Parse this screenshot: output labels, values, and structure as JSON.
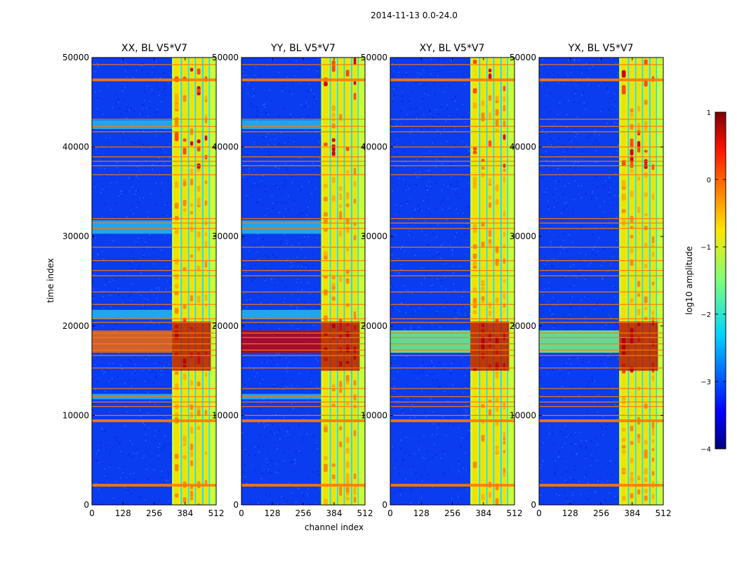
{
  "suptitle": "2014-11-13 0.0-24.0",
  "chart_data": [
    {
      "type": "heatmap",
      "title": "XX, BL V5*V7",
      "xlabel": "",
      "ylabel": "time index",
      "xlim": [
        0,
        512
      ],
      "ylim": [
        0,
        50000
      ],
      "xticks": [
        0,
        128,
        256,
        384,
        512
      ],
      "yticks": [
        0,
        10000,
        20000,
        30000,
        40000,
        50000
      ]
    },
    {
      "type": "heatmap",
      "title": "YY, BL V5*V7",
      "xlabel": "channel index",
      "ylabel": "",
      "xlim": [
        0,
        512
      ],
      "ylim": [
        0,
        50000
      ],
      "xticks": [
        0,
        128,
        256,
        384,
        512
      ],
      "yticks": [
        0,
        10000,
        20000,
        30000,
        40000,
        50000
      ]
    },
    {
      "type": "heatmap",
      "title": "XY, BL V5*V7",
      "xlabel": "",
      "ylabel": "",
      "xlim": [
        0,
        512
      ],
      "ylim": [
        0,
        50000
      ],
      "xticks": [
        0,
        128,
        256,
        384,
        512
      ],
      "yticks": [
        0,
        10000,
        20000,
        30000,
        40000,
        50000
      ]
    },
    {
      "type": "heatmap",
      "title": "YX, BL V5*V7",
      "xlabel": "",
      "ylabel": "",
      "xlim": [
        0,
        512
      ],
      "ylim": [
        0,
        50000
      ],
      "xticks": [
        0,
        128,
        256,
        384,
        512
      ],
      "yticks": [
        0,
        10000,
        20000,
        30000,
        40000,
        50000
      ]
    }
  ],
  "colorbar": {
    "label": "log10 amplitude",
    "range": [
      -4,
      1
    ],
    "ticks": [
      1,
      0,
      -1,
      -2,
      -3,
      -4
    ],
    "tick_labels": [
      "1",
      "0",
      "−1",
      "−2",
      "−3",
      "−4"
    ]
  }
}
